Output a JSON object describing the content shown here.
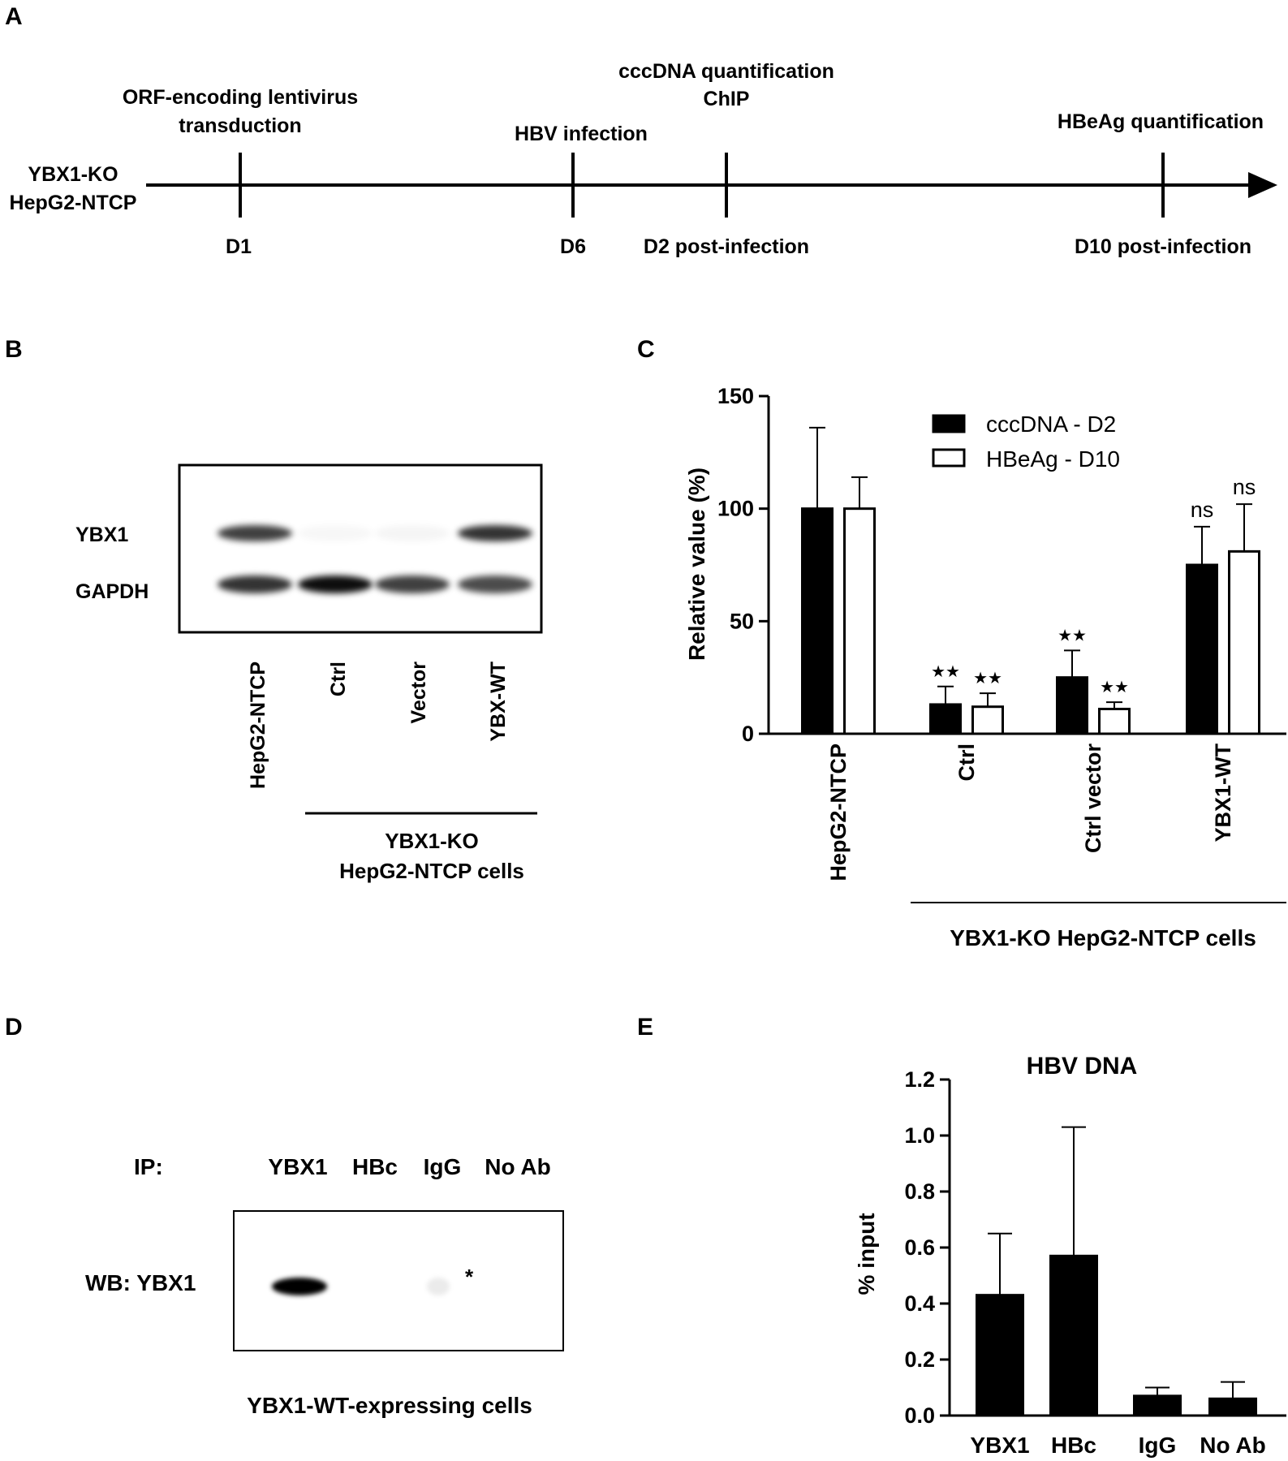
{
  "panel_labels": [
    "A",
    "B",
    "C",
    "D",
    "E"
  ],
  "timeline": {
    "start_label_line1": "YBX1-KO",
    "start_label_line2": "HepG2-NTCP",
    "events": [
      {
        "above": [
          "ORF-encoding lentivirus",
          "transduction"
        ],
        "below": "D1"
      },
      {
        "above": [
          "HBV infection"
        ],
        "below": "D6"
      },
      {
        "above": [
          "cccDNA quantification",
          "ChIP"
        ],
        "below": "D2 post-infection"
      },
      {
        "above": [
          "HBeAg quantification"
        ],
        "below": "D10 post-infection"
      }
    ]
  },
  "blot_b": {
    "row_labels": [
      "YBX1",
      "GAPDH"
    ],
    "lanes": [
      "HepG2-NTCP",
      "Ctrl",
      "Vector",
      "YBX-WT"
    ],
    "group_line1": "YBX1-KO",
    "group_line2": "HepG2-NTCP cells",
    "ybx1_intensity": [
      0.75,
      0.03,
      0.04,
      0.8
    ],
    "gapdh_intensity": [
      0.8,
      0.95,
      0.75,
      0.7
    ]
  },
  "blot_d": {
    "ip_label": "IP:",
    "lanes": [
      "YBX1",
      "HBc",
      "IgG",
      "No Ab"
    ],
    "row_label": "WB: YBX1",
    "caption": "YBX1-WT-expressing cells",
    "asterisk": "*",
    "intensity": [
      1.0,
      0.0,
      0.08,
      0.0
    ]
  },
  "chart_data": [
    {
      "type": "bar",
      "ylabel": "Relative value (%)",
      "ylim": [
        0,
        150
      ],
      "yticks": [
        "0",
        "50",
        "100",
        "150"
      ],
      "categories": [
        "HepG2-NTCP",
        "Ctrl",
        "Ctrl vector",
        "YBX1-WT"
      ],
      "group_label": "YBX1-KO HepG2-NTCP cells",
      "legend_position": "top-right",
      "series": [
        {
          "name": "cccDNA - D2",
          "fill": "#000000",
          "values": [
            100,
            13,
            25,
            75
          ],
          "errors": [
            36,
            8,
            12,
            17
          ],
          "annotations": [
            "",
            "★★",
            "★★",
            "ns"
          ]
        },
        {
          "name": "HBeAg - D10",
          "fill": "#ffffff",
          "values": [
            100,
            12,
            11,
            81
          ],
          "errors": [
            14,
            6,
            3,
            21
          ],
          "annotations": [
            "",
            "★★",
            "★★",
            "ns"
          ]
        }
      ]
    },
    {
      "type": "bar",
      "title": "HBV DNA",
      "ylabel": "% input",
      "ylim": [
        0,
        1.2
      ],
      "yticks": [
        "0.0",
        "0.2",
        "0.4",
        "0.6",
        "0.8",
        "1.0",
        "1.2"
      ],
      "categories": [
        "YBX1",
        "HBc",
        "IgG",
        "No Ab"
      ],
      "series": [
        {
          "values": [
            0.43,
            0.57,
            0.07,
            0.06
          ],
          "errors": [
            0.22,
            0.46,
            0.03,
            0.06
          ]
        }
      ]
    }
  ]
}
